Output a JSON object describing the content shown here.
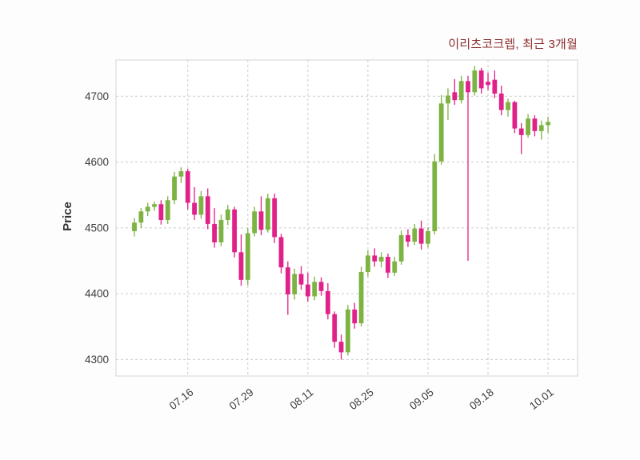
{
  "chart_data": {
    "type": "candlestick",
    "title": "이리츠코크렙, 최근 3개월",
    "ylabel": "Price",
    "ylim": [
      4275,
      4755
    ],
    "yticks": [
      4300,
      4400,
      4500,
      4600,
      4700
    ],
    "xticks": [
      {
        "index": 8,
        "label": "07.16"
      },
      {
        "index": 17,
        "label": "07.29"
      },
      {
        "index": 26,
        "label": "08.11"
      },
      {
        "index": 35,
        "label": "08.25"
      },
      {
        "index": 44,
        "label": "09.05"
      },
      {
        "index": 53,
        "label": "09.18"
      },
      {
        "index": 62,
        "label": "10.01"
      }
    ],
    "grid": true,
    "legend": "none",
    "up_color": "#7cb342",
    "down_color": "#e0218a",
    "grid_color": "#cccccc",
    "border_color": "#d4d4d4",
    "title_color": "#8b2c2c",
    "axis_text_color": "#3b3b3b",
    "candles": [
      [
        4495,
        4515,
        4487,
        4508
      ],
      [
        4508,
        4530,
        4500,
        4525
      ],
      [
        4525,
        4538,
        4518,
        4532
      ],
      [
        4532,
        4540,
        4526,
        4536
      ],
      [
        4536,
        4542,
        4505,
        4512
      ],
      [
        4512,
        4548,
        4506,
        4542
      ],
      [
        4542,
        4585,
        4536,
        4578
      ],
      [
        4578,
        4592,
        4568,
        4586
      ],
      [
        4586,
        4590,
        4528,
        4538
      ],
      [
        4538,
        4562,
        4512,
        4520
      ],
      [
        4520,
        4556,
        4514,
        4548
      ],
      [
        4548,
        4560,
        4498,
        4506
      ],
      [
        4506,
        4530,
        4470,
        4478
      ],
      [
        4478,
        4520,
        4472,
        4512
      ],
      [
        4512,
        4535,
        4504,
        4528
      ],
      [
        4528,
        4532,
        4455,
        4463
      ],
      [
        4463,
        4490,
        4412,
        4421
      ],
      [
        4421,
        4500,
        4413,
        4492
      ],
      [
        4492,
        4532,
        4487,
        4525
      ],
      [
        4525,
        4548,
        4489,
        4497
      ],
      [
        4497,
        4552,
        4493,
        4545
      ],
      [
        4545,
        4552,
        4477,
        4486
      ],
      [
        4486,
        4491,
        4431,
        4440
      ],
      [
        4440,
        4449,
        4368,
        4399
      ],
      [
        4399,
        4438,
        4391,
        4430
      ],
      [
        4430,
        4442,
        4406,
        4414
      ],
      [
        4414,
        4432,
        4388,
        4396
      ],
      [
        4396,
        4426,
        4390,
        4418
      ],
      [
        4418,
        4425,
        4397,
        4404
      ],
      [
        4404,
        4416,
        4361,
        4369
      ],
      [
        4369,
        4373,
        4318,
        4327
      ],
      [
        4327,
        4338,
        4300,
        4311
      ],
      [
        4311,
        4383,
        4306,
        4376
      ],
      [
        4376,
        4386,
        4347,
        4355
      ],
      [
        4355,
        4441,
        4350,
        4433
      ],
      [
        4433,
        4466,
        4426,
        4458
      ],
      [
        4458,
        4469,
        4441,
        4449
      ],
      [
        4449,
        4463,
        4440,
        4456
      ],
      [
        4456,
        4461,
        4424,
        4432
      ],
      [
        4432,
        4456,
        4427,
        4449
      ],
      [
        4449,
        4496,
        4444,
        4489
      ],
      [
        4489,
        4498,
        4471,
        4479
      ],
      [
        4479,
        4506,
        4474,
        4499
      ],
      [
        4499,
        4511,
        4467,
        4476
      ],
      [
        4476,
        4501,
        4470,
        4495
      ],
      [
        4495,
        4612,
        4490,
        4601
      ],
      [
        4601,
        4702,
        4596,
        4689
      ],
      [
        4689,
        4712,
        4664,
        4701
      ],
      [
        4706,
        4726,
        4687,
        4694
      ],
      [
        4694,
        4731,
        4689,
        4723
      ],
      [
        4723,
        4731,
        4450,
        4706
      ],
      [
        4706,
        4746,
        4701,
        4739
      ],
      [
        4739,
        4743,
        4704,
        4712
      ],
      [
        4722,
        4736,
        4709,
        4717
      ],
      [
        4725,
        4739,
        4697,
        4704
      ],
      [
        4704,
        4716,
        4671,
        4679
      ],
      [
        4679,
        4696,
        4669,
        4691
      ],
      [
        4691,
        4693,
        4644,
        4651
      ],
      [
        4651,
        4659,
        4612,
        4641
      ],
      [
        4641,
        4673,
        4637,
        4666
      ],
      [
        4666,
        4671,
        4639,
        4647
      ],
      [
        4647,
        4663,
        4634,
        4656
      ],
      [
        4656,
        4669,
        4644,
        4661
      ]
    ]
  }
}
